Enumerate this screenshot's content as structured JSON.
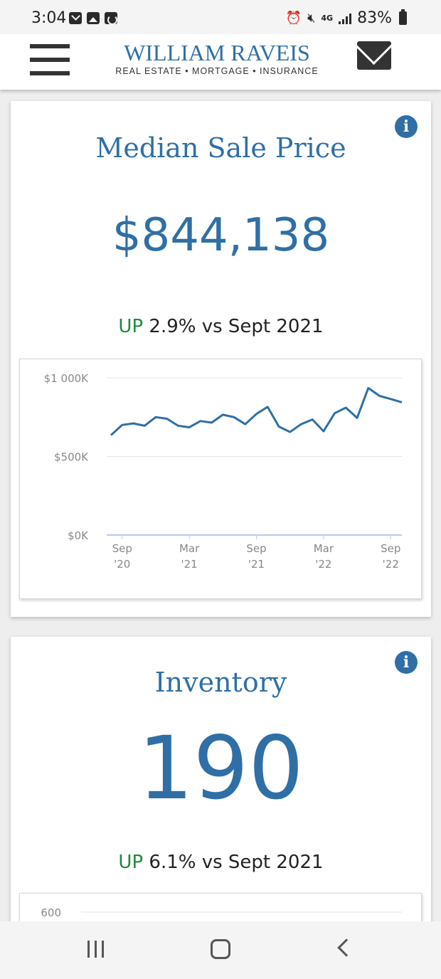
{
  "status_bar": {
    "time": "3:04",
    "network": "4G",
    "battery": "83%"
  },
  "header": {
    "logo_name": "WILLIAM RAVEIS",
    "logo_subtitle": "REAL ESTATE • MORTGAGE • INSURANCE"
  },
  "cards": [
    {
      "title": "Median Sale Price",
      "value": "$844,138",
      "change_direction": "UP",
      "change_text": "2.9% vs Sept 2021",
      "info_label": "i",
      "chart_data": {
        "type": "line",
        "y_tick_labels": [
          "$1 000K",
          "$500K",
          "$0K"
        ],
        "y_ticks": [
          1000000,
          500000,
          0
        ],
        "ylim": [
          0,
          1000000
        ],
        "x_tick_labels": [
          [
            "Sep",
            "'20"
          ],
          [
            "Mar",
            "'21"
          ],
          [
            "Sep",
            "'21"
          ],
          [
            "Mar",
            "'22"
          ],
          [
            "Sep",
            "'22"
          ]
        ],
        "x_tick_months": [
          0,
          6,
          12,
          18,
          24
        ],
        "grid": true,
        "series": [
          {
            "color": "#2f6fa6",
            "x": [
              -1,
              0,
              1,
              2,
              3,
              4,
              5,
              6,
              7,
              8,
              9,
              10,
              11,
              12,
              13,
              14,
              15,
              16,
              17,
              18,
              19,
              20,
              21,
              22,
              23,
              24,
              25
            ],
            "values": [
              635000,
              700000,
              710000,
              695000,
              750000,
              740000,
              695000,
              685000,
              725000,
              715000,
              765000,
              750000,
              705000,
              770000,
              815000,
              690000,
              655000,
              705000,
              735000,
              660000,
              775000,
              810000,
              745000,
              935000,
              885000,
              865000,
              844138
            ]
          }
        ]
      }
    },
    {
      "title": "Inventory",
      "value": "190",
      "change_direction": "UP",
      "change_text": "6.1% vs Sept 2021",
      "info_label": "i",
      "chart_data": {
        "type": "line",
        "y_tick_labels": [
          "600"
        ],
        "y_ticks": [
          600
        ],
        "grid": true,
        "series": []
      }
    }
  ]
}
